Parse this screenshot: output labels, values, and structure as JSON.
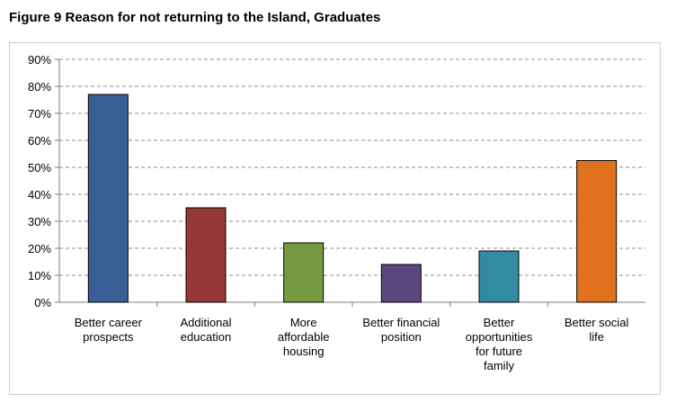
{
  "figure_title": "Figure 9 Reason for not returning to the Island, Graduates",
  "chart_data": {
    "type": "bar",
    "title": "Figure 9 Reason for not returning to the Island, Graduates",
    "xlabel": "",
    "ylabel": "",
    "ylim": [
      0,
      90
    ],
    "y_unit": "%",
    "yticks": [
      "0%",
      "10%",
      "20%",
      "30%",
      "40%",
      "50%",
      "60%",
      "70%",
      "80%",
      "90%"
    ],
    "grid": true,
    "legend": "none",
    "categories": [
      "Better career prospects",
      "Additional education",
      "More affordable housing",
      "Better financial position",
      "Better opportunities for future family",
      "Better social life"
    ],
    "category_label_lines": [
      [
        "Better career",
        "prospects"
      ],
      [
        "Additional",
        "education"
      ],
      [
        "More",
        "affordable",
        "housing"
      ],
      [
        "Better financial",
        "position"
      ],
      [
        "Better",
        "opportunities",
        "for future",
        "family"
      ],
      [
        "Better social",
        "life"
      ]
    ],
    "values": [
      77,
      35,
      22,
      14,
      19,
      52.5
    ],
    "colors": [
      "#3a5f96",
      "#953837",
      "#769a3f",
      "#5b477d",
      "#338ba3",
      "#e2711d"
    ]
  }
}
